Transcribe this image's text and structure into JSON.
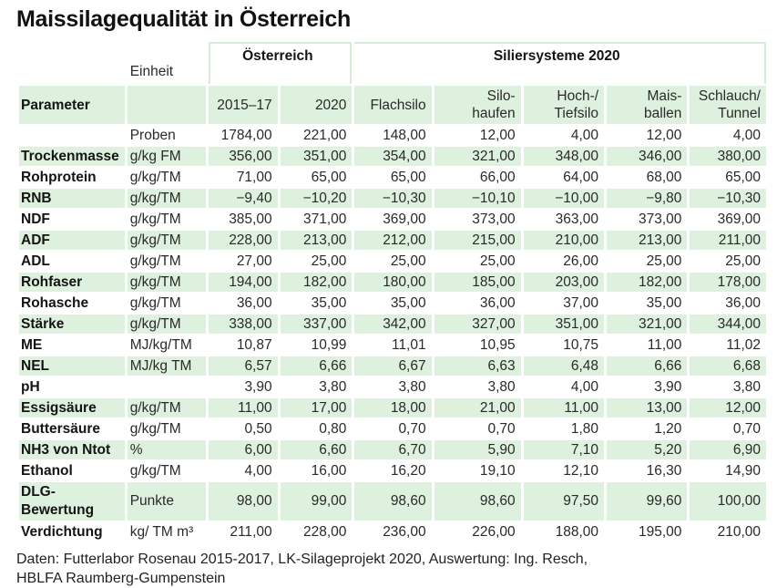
{
  "title": "Maissilagequalität in Österreich",
  "colors": {
    "row_green": "#def0de",
    "rule_green": "#d9ecd9",
    "title_text": "#121212",
    "body_text": "#2a2a2a",
    "background": "#ffffff"
  },
  "header": {
    "parameter_label": "Parameter",
    "einheit_label": "Einheit",
    "group_austria": "Österreich",
    "group_siliersysteme": "Siliersysteme 2020",
    "columns": [
      "2015–17",
      "2020",
      "Flachsilo",
      "Silo-\nhaufen",
      "Hoch-/\nTiefsilo",
      "Mais-\nballen",
      "Schlauch/\nTunnel"
    ]
  },
  "table": {
    "rows": [
      {
        "param": "",
        "einheit": "Proben",
        "values": [
          "1784,00",
          "221,00",
          "148,00",
          "12,00",
          "4,00",
          "12,00",
          "4,00"
        ]
      },
      {
        "param": "Trockenmasse",
        "einheit": "g/kg FM",
        "values": [
          "356,00",
          "351,00",
          "354,00",
          "321,00",
          "348,00",
          "346,00",
          "380,00"
        ]
      },
      {
        "param": "Rohprotein",
        "einheit": "g/kg/TM",
        "values": [
          "71,00",
          "65,00",
          "65,00",
          "66,00",
          "64,00",
          "68,00",
          "65,00"
        ]
      },
      {
        "param": "RNB",
        "einheit": "g/kg/TM",
        "values": [
          "−9,40",
          "−10,20",
          "−10,30",
          "−10,10",
          "−10,00",
          "−9,80",
          "−10,30"
        ]
      },
      {
        "param": "NDF",
        "einheit": "g/kg/TM",
        "values": [
          "385,00",
          "371,00",
          "369,00",
          "373,00",
          "363,00",
          "373,00",
          "369,00"
        ]
      },
      {
        "param": "ADF",
        "einheit": "g/kg/TM",
        "values": [
          "228,00",
          "213,00",
          "212,00",
          "215,00",
          "210,00",
          "213,00",
          "211,00"
        ]
      },
      {
        "param": "ADL",
        "einheit": "g/kg/TM",
        "values": [
          "27,00",
          "25,00",
          "25,00",
          "25,00",
          "26,00",
          "25,00",
          "25,00"
        ]
      },
      {
        "param": "Rohfaser",
        "einheit": "g/kg/TM",
        "values": [
          "194,00",
          "182,00",
          "180,00",
          "185,00",
          "203,00",
          "182,00",
          "178,00"
        ]
      },
      {
        "param": "Rohasche",
        "einheit": "g/kg/TM",
        "values": [
          "36,00",
          "35,00",
          "35,00",
          "36,00",
          "37,00",
          "35,00",
          "36,00"
        ]
      },
      {
        "param": "Stärke",
        "einheit": "g/kg/TM",
        "values": [
          "338,00",
          "337,00",
          "342,00",
          "327,00",
          "351,00",
          "321,00",
          "344,00"
        ]
      },
      {
        "param": "ME",
        "einheit": "MJ/kg/TM",
        "values": [
          "10,87",
          "10,99",
          "11,01",
          "10,95",
          "10,75",
          "11,00",
          "11,02"
        ]
      },
      {
        "param": "NEL",
        "einheit": "MJ/kg TM",
        "values": [
          "6,57",
          "6,66",
          "6,67",
          "6,63",
          "6,48",
          "6,66",
          "6,68"
        ]
      },
      {
        "param": "pH",
        "einheit": "",
        "values": [
          "3,90",
          "3,80",
          "3,80",
          "3,80",
          "4,00",
          "3,90",
          "3,80"
        ]
      },
      {
        "param": "Essigsäure",
        "einheit": "g/kg/TM",
        "values": [
          "11,00",
          "17,00",
          "18,00",
          "21,00",
          "11,00",
          "13,00",
          "12,00"
        ]
      },
      {
        "param": "Buttersäure",
        "einheit": "g/kg/TM",
        "values": [
          "0,50",
          "0,80",
          "0,70",
          "0,70",
          "1,80",
          "1,20",
          "0,70"
        ]
      },
      {
        "param": "NH3 von Ntot",
        "einheit": "%",
        "values": [
          "6,00",
          "6,60",
          "6,70",
          "5,90",
          "7,10",
          "5,20",
          "6,90"
        ]
      },
      {
        "param": "Ethanol",
        "einheit": "g/kg/TM",
        "values": [
          "4,00",
          "16,00",
          "16,20",
          "19,10",
          "12,10",
          "16,30",
          "14,90"
        ]
      },
      {
        "param": "DLG-\nBewertung",
        "einheit": "Punkte",
        "values": [
          "98,00",
          "99,00",
          "98,60",
          "98,60",
          "97,50",
          "99,60",
          "100,00"
        ]
      },
      {
        "param": "Verdichtung",
        "einheit": "kg/ TM m³",
        "values": [
          "211,00",
          "228,00",
          "236,00",
          "226,00",
          "188,00",
          "195,00",
          "210,00"
        ]
      }
    ]
  },
  "footer": {
    "line1": "Daten: Futterlabor Rosenau 2015-2017, LK-Silageprojekt 2020, Auswertung: Ing. Resch,",
    "line2": "HBLFA Raumberg-Gumpenstein"
  },
  "chart_data": {
    "type": "table",
    "title": "Maissilagequalität in Österreich",
    "column_groups": [
      {
        "label": "Österreich",
        "columns": [
          "2015–17",
          "2020"
        ]
      },
      {
        "label": "Siliersysteme 2020",
        "columns": [
          "Flachsilo",
          "Silohaufen",
          "Hoch-/Tiefsilo",
          "Maisballen",
          "Schlauch/Tunnel"
        ]
      }
    ],
    "columns": [
      "Parameter",
      "Einheit",
      "2015–17",
      "2020",
      "Flachsilo",
      "Silohaufen",
      "Hoch-/Tiefsilo",
      "Maisballen",
      "Schlauch/Tunnel"
    ],
    "rows": [
      {
        "parameter": "",
        "einheit": "Proben",
        "values": [
          1784,
          221,
          148,
          12,
          4,
          12,
          4
        ]
      },
      {
        "parameter": "Trockenmasse",
        "einheit": "g/kg FM",
        "values": [
          356,
          351,
          354,
          321,
          348,
          346,
          380
        ]
      },
      {
        "parameter": "Rohprotein",
        "einheit": "g/kg/TM",
        "values": [
          71,
          65,
          65,
          66,
          64,
          68,
          65
        ]
      },
      {
        "parameter": "RNB",
        "einheit": "g/kg/TM",
        "values": [
          -9.4,
          -10.2,
          -10.3,
          -10.1,
          -10.0,
          -9.8,
          -10.3
        ]
      },
      {
        "parameter": "NDF",
        "einheit": "g/kg/TM",
        "values": [
          385,
          371,
          369,
          373,
          363,
          373,
          369
        ]
      },
      {
        "parameter": "ADF",
        "einheit": "g/kg/TM",
        "values": [
          228,
          213,
          212,
          215,
          210,
          213,
          211
        ]
      },
      {
        "parameter": "ADL",
        "einheit": "g/kg/TM",
        "values": [
          27,
          25,
          25,
          25,
          26,
          25,
          25
        ]
      },
      {
        "parameter": "Rohfaser",
        "einheit": "g/kg/TM",
        "values": [
          194,
          182,
          180,
          185,
          203,
          182,
          178
        ]
      },
      {
        "parameter": "Rohasche",
        "einheit": "g/kg/TM",
        "values": [
          36,
          35,
          35,
          36,
          37,
          35,
          36
        ]
      },
      {
        "parameter": "Stärke",
        "einheit": "g/kg/TM",
        "values": [
          338,
          337,
          342,
          327,
          351,
          321,
          344
        ]
      },
      {
        "parameter": "ME",
        "einheit": "MJ/kg/TM",
        "values": [
          10.87,
          10.99,
          11.01,
          10.95,
          10.75,
          11.0,
          11.02
        ]
      },
      {
        "parameter": "NEL",
        "einheit": "MJ/kg TM",
        "values": [
          6.57,
          6.66,
          6.67,
          6.63,
          6.48,
          6.66,
          6.68
        ]
      },
      {
        "parameter": "pH",
        "einheit": "",
        "values": [
          3.9,
          3.8,
          3.8,
          3.8,
          4.0,
          3.9,
          3.8
        ]
      },
      {
        "parameter": "Essigsäure",
        "einheit": "g/kg/TM",
        "values": [
          11,
          17,
          18,
          21,
          11,
          13,
          12
        ]
      },
      {
        "parameter": "Buttersäure",
        "einheit": "g/kg/TM",
        "values": [
          0.5,
          0.8,
          0.7,
          0.7,
          1.8,
          1.2,
          0.7
        ]
      },
      {
        "parameter": "NH3 von Ntot",
        "einheit": "%",
        "values": [
          6.0,
          6.6,
          6.7,
          5.9,
          7.1,
          5.2,
          6.9
        ]
      },
      {
        "parameter": "Ethanol",
        "einheit": "g/kg/TM",
        "values": [
          4.0,
          16.0,
          16.2,
          19.1,
          12.1,
          16.3,
          14.9
        ]
      },
      {
        "parameter": "DLG-Bewertung",
        "einheit": "Punkte",
        "values": [
          98.0,
          99.0,
          98.6,
          98.6,
          97.5,
          99.6,
          100.0
        ]
      },
      {
        "parameter": "Verdichtung",
        "einheit": "kg/ TM m³",
        "values": [
          211,
          228,
          236,
          226,
          188,
          195,
          210
        ]
      }
    ],
    "source_note": "Daten: Futterlabor Rosenau 2015-2017, LK-Silageprojekt 2020, Auswertung: Ing. Resch, HBLFA Raumberg-Gumpenstein"
  }
}
